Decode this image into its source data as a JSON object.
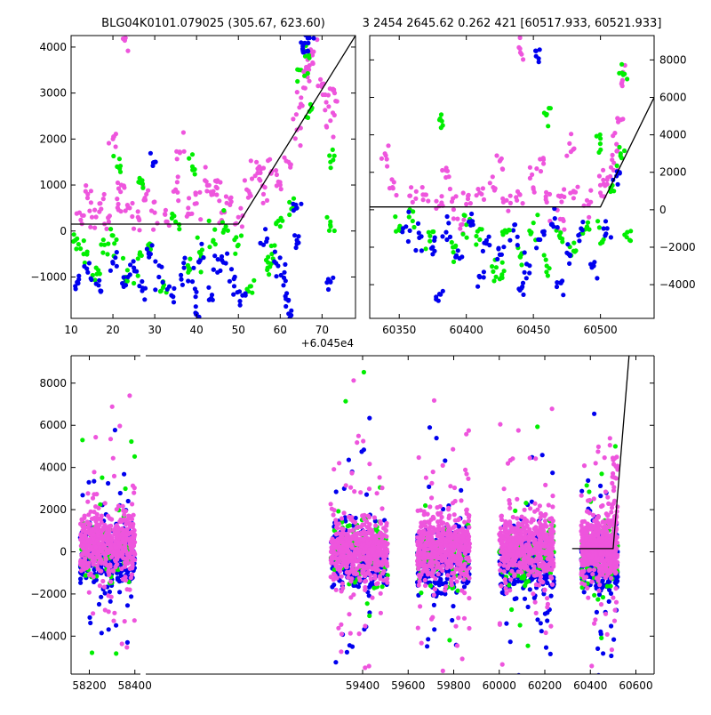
{
  "chart_data": [
    {
      "id": "top_left",
      "type": "scatter",
      "title": "BLG04K0101.079025 (305.67, 623.60)",
      "xlim": [
        10,
        78
      ],
      "ylim": [
        -1900,
        4250
      ],
      "x_offset_label": "+6.045e4",
      "xticks": [
        10,
        20,
        30,
        40,
        50,
        60,
        70
      ],
      "yticks": [
        -1000,
        0,
        1000,
        2000,
        3000,
        4000
      ],
      "model_line": [
        [
          10,
          150
        ],
        [
          50,
          150
        ],
        [
          78,
          4250
        ]
      ],
      "series": [
        {
          "color": "#ee55dd",
          "points": [
            [
              12,
              400
            ],
            [
              14,
              800
            ],
            [
              15,
              300
            ],
            [
              17,
              600
            ],
            [
              19,
              200
            ],
            [
              21,
              700
            ],
            [
              22,
              1000
            ],
            [
              24,
              500
            ],
            [
              26,
              300
            ],
            [
              28,
              800
            ],
            [
              30,
              400
            ],
            [
              33,
              200
            ],
            [
              35,
              900
            ],
            [
              38,
              500
            ],
            [
              40,
              600
            ],
            [
              42,
              1100
            ],
            [
              44,
              800
            ],
            [
              46,
              400
            ],
            [
              48,
              700
            ],
            [
              50,
              300
            ],
            [
              52,
              900
            ],
            [
              54,
              1200
            ],
            [
              56,
              800
            ],
            [
              58,
              1300
            ],
            [
              60,
              1000
            ],
            [
              62,
              1500
            ],
            [
              64,
              2200
            ],
            [
              65,
              2900
            ],
            [
              66,
              3400
            ],
            [
              67,
              3600
            ],
            [
              68,
              3900
            ],
            [
              70,
              3200
            ],
            [
              71,
              2800
            ],
            [
              72,
              2400
            ],
            [
              73,
              3000
            ],
            [
              20,
              2000
            ],
            [
              23,
              4200
            ],
            [
              55,
              1400
            ],
            [
              45,
              1100
            ],
            [
              36,
              1700
            ]
          ]
        },
        {
          "color": "#00ee00",
          "points": [
            [
              11,
              -200
            ],
            [
              13,
              -500
            ],
            [
              16,
              -800
            ],
            [
              18,
              -300
            ],
            [
              21,
              1400
            ],
            [
              23,
              -1000
            ],
            [
              26,
              -600
            ],
            [
              29,
              -400
            ],
            [
              32,
              -1100
            ],
            [
              35,
              200
            ],
            [
              38,
              -900
            ],
            [
              41,
              -500
            ],
            [
              44,
              -200
            ],
            [
              47,
              100
            ],
            [
              50,
              -300
            ],
            [
              53,
              -1200
            ],
            [
              57,
              -800
            ],
            [
              60,
              100
            ],
            [
              63,
              500
            ],
            [
              65,
              3500
            ],
            [
              66,
              3800
            ],
            [
              67,
              2600
            ],
            [
              72,
              1500
            ],
            [
              72,
              200
            ],
            [
              58,
              -500
            ],
            [
              20,
              -100
            ],
            [
              27,
              1100
            ],
            [
              39,
              1400
            ]
          ]
        },
        {
          "color": "#0000ee",
          "points": [
            [
              11,
              -1200
            ],
            [
              14,
              -900
            ],
            [
              17,
              -1300
            ],
            [
              20,
              -700
            ],
            [
              23,
              -1100
            ],
            [
              25,
              -800
            ],
            [
              27,
              -1300
            ],
            [
              29,
              -500
            ],
            [
              31,
              -1000
            ],
            [
              34,
              -1400
            ],
            [
              37,
              -800
            ],
            [
              39,
              -1100
            ],
            [
              41,
              -600
            ],
            [
              43,
              -1500
            ],
            [
              45,
              -900
            ],
            [
              47,
              -700
            ],
            [
              49,
              -1200
            ],
            [
              51,
              -1400
            ],
            [
              56,
              -300
            ],
            [
              59,
              -700
            ],
            [
              61,
              -900
            ],
            [
              62,
              -1500
            ],
            [
              64,
              500
            ],
            [
              64,
              -200
            ],
            [
              65,
              4100
            ],
            [
              66,
              3900
            ],
            [
              67,
              4200
            ],
            [
              72,
              -1100
            ],
            [
              62,
              -1800
            ],
            [
              40,
              -1800
            ],
            [
              30,
              1500
            ]
          ]
        }
      ]
    },
    {
      "id": "top_right",
      "type": "scatter",
      "title": "3 2454 2645.62 0.262 421 [60517.933, 60521.933]",
      "xlim": [
        60328,
        60540
      ],
      "ylim": [
        -5800,
        9300
      ],
      "xticks": [
        60350,
        60400,
        60450,
        60500
      ],
      "yticks": [
        -4000,
        -2000,
        0,
        2000,
        4000,
        6000,
        8000
      ],
      "model_line": [
        [
          60328,
          150
        ],
        [
          60500,
          150
        ],
        [
          60540,
          6000
        ]
      ],
      "series": [
        {
          "color": "#ee55dd",
          "points": [
            [
              60340,
              2900
            ],
            [
              60345,
              1200
            ],
            [
              60360,
              400
            ],
            [
              60370,
              800
            ],
            [
              60380,
              200
            ],
            [
              60390,
              600
            ],
            [
              60400,
              300
            ],
            [
              60410,
              900
            ],
            [
              60420,
              1200
            ],
            [
              60430,
              500
            ],
            [
              60440,
              800
            ],
            [
              60450,
              1100
            ],
            [
              60460,
              400
            ],
            [
              60470,
              700
            ],
            [
              60480,
              1000
            ],
            [
              60490,
              500
            ],
            [
              60500,
              900
            ],
            [
              60505,
              1600
            ],
            [
              60510,
              2500
            ],
            [
              60512,
              3500
            ],
            [
              60514,
              4800
            ],
            [
              60516,
              6800
            ],
            [
              60385,
              2100
            ],
            [
              60425,
              2600
            ],
            [
              60455,
              2700
            ],
            [
              60478,
              3100
            ],
            [
              60440,
              8600
            ],
            [
              60396,
              -800
            ],
            [
              60470,
              -500
            ]
          ]
        },
        {
          "color": "#00ee00",
          "points": [
            [
              60350,
              -1000
            ],
            [
              60360,
              -600
            ],
            [
              60373,
              -1400
            ],
            [
              60380,
              4800
            ],
            [
              60390,
              -2000
            ],
            [
              60400,
              -800
            ],
            [
              60410,
              -1600
            ],
            [
              60420,
              -3300
            ],
            [
              60430,
              -1200
            ],
            [
              60440,
              -2500
            ],
            [
              60450,
              -700
            ],
            [
              60460,
              -3000
            ],
            [
              60470,
              -1500
            ],
            [
              60480,
              -2200
            ],
            [
              60490,
              -900
            ],
            [
              60500,
              -1800
            ],
            [
              60510,
              1000
            ],
            [
              60515,
              3000
            ],
            [
              60517,
              7200
            ],
            [
              60460,
              5100
            ],
            [
              60520,
              -1200
            ],
            [
              60500,
              3800
            ],
            [
              60425,
              -3700
            ]
          ]
        },
        {
          "color": "#0000ee",
          "points": [
            [
              60355,
              -900
            ],
            [
              60365,
              -1500
            ],
            [
              60375,
              -2000
            ],
            [
              60385,
              -1200
            ],
            [
              60395,
              -2600
            ],
            [
              60405,
              -800
            ],
            [
              60415,
              -1800
            ],
            [
              60425,
              -2400
            ],
            [
              60435,
              -1100
            ],
            [
              60445,
              -2900
            ],
            [
              60455,
              -1600
            ],
            [
              60465,
              -900
            ],
            [
              60475,
              -2300
            ],
            [
              60485,
              -1300
            ],
            [
              60495,
              -3000
            ],
            [
              60505,
              -1000
            ],
            [
              60512,
              1800
            ],
            [
              60452,
              8200
            ],
            [
              60380,
              -4500
            ],
            [
              60410,
              -3600
            ],
            [
              60440,
              -4300
            ],
            [
              60470,
              -3900
            ]
          ]
        }
      ]
    },
    {
      "id": "bottom",
      "type": "scatter",
      "title": "",
      "xlim": [
        58120,
        60680
      ],
      "ylim": [
        -5800,
        9300
      ],
      "xticks": [
        58200,
        58400,
        59400,
        59600,
        59800,
        60000,
        60200,
        60400,
        60600
      ],
      "yticks": [
        -4000,
        -2000,
        0,
        2000,
        4000,
        6000,
        8000
      ],
      "broken_axis_gap": [
        58440,
        59260
      ],
      "model_line": [
        [
          60320,
          150
        ],
        [
          60500,
          150
        ],
        [
          60570,
          9300
        ]
      ],
      "seasons": [
        {
          "x": [
            58160,
            58400
          ],
          "centers": {
            "#ee55dd": 400,
            "#00ee00": 0,
            "#0000ee": -200
          }
        },
        {
          "x": [
            59260,
            59510
          ],
          "centers": {
            "#ee55dd": 0,
            "#00ee00": 200,
            "#0000ee": -300
          }
        },
        {
          "x": [
            59640,
            59870
          ],
          "centers": {
            "#ee55dd": 200,
            "#00ee00": 0,
            "#0000ee": -400
          }
        },
        {
          "x": [
            60000,
            60240
          ],
          "centers": {
            "#ee55dd": 300,
            "#00ee00": -100,
            "#0000ee": -500
          }
        },
        {
          "x": [
            60360,
            60520
          ],
          "centers": {
            "#ee55dd": 200,
            "#00ee00": -300,
            "#0000ee": -500
          }
        }
      ],
      "series": [
        {
          "name": "pink",
          "color": "#ee55dd"
        },
        {
          "name": "green",
          "color": "#00ee00"
        },
        {
          "name": "blue",
          "color": "#0000ee"
        }
      ]
    }
  ]
}
